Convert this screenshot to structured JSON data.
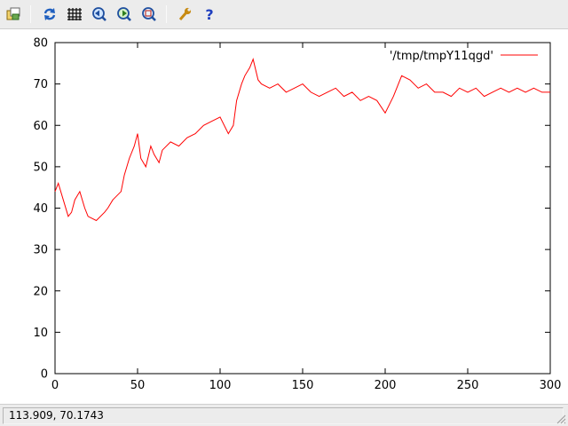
{
  "toolbar": {
    "buttons": [
      {
        "name": "export-icon"
      },
      {
        "name": "replot-icon"
      },
      {
        "name": "grid-icon"
      },
      {
        "name": "zoom-previous-icon"
      },
      {
        "name": "zoom-next-icon"
      },
      {
        "name": "autoscale-icon"
      },
      {
        "name": "options-wrench-icon"
      },
      {
        "name": "help-icon"
      }
    ]
  },
  "status": {
    "coords": "113.909,  70.1743"
  },
  "colors": {
    "series": "#ff0000",
    "axis": "#000000"
  },
  "chart_data": {
    "type": "line",
    "title": "",
    "xlabel": "",
    "ylabel": "",
    "xlim": [
      0,
      300
    ],
    "ylim": [
      0,
      80
    ],
    "xticks": [
      "0",
      "50",
      "100",
      "150",
      "200",
      "250",
      "300"
    ],
    "yticks": [
      "0",
      "10",
      "20",
      "30",
      "40",
      "50",
      "60",
      "70",
      "80"
    ],
    "grid": false,
    "legend": {
      "position": "top-right",
      "entries": [
        "'/tmp/tmpY11qgd'"
      ]
    },
    "series": [
      {
        "name": "'/tmp/tmpY11qgd'",
        "x": [
          0,
          2,
          5,
          8,
          10,
          12,
          15,
          18,
          20,
          25,
          30,
          32,
          35,
          40,
          42,
          45,
          48,
          50,
          52,
          55,
          58,
          60,
          63,
          65,
          70,
          75,
          80,
          85,
          90,
          95,
          100,
          105,
          108,
          110,
          113,
          115,
          118,
          120,
          123,
          125,
          130,
          135,
          140,
          145,
          150,
          155,
          160,
          165,
          170,
          175,
          180,
          185,
          190,
          195,
          200,
          205,
          208,
          210,
          215,
          220,
          225,
          230,
          235,
          240,
          245,
          250,
          255,
          260,
          265,
          270,
          275,
          280,
          285,
          290,
          295,
          300
        ],
        "y": [
          44,
          46,
          42,
          38,
          39,
          42,
          44,
          40,
          38,
          37,
          39,
          40,
          42,
          44,
          48,
          52,
          55,
          58,
          52,
          50,
          55,
          53,
          51,
          54,
          56,
          55,
          57,
          58,
          60,
          61,
          62,
          58,
          60,
          66,
          70,
          72,
          74,
          76,
          71,
          70,
          69,
          70,
          68,
          69,
          70,
          68,
          67,
          68,
          69,
          67,
          68,
          66,
          67,
          66,
          63,
          67,
          70,
          72,
          71,
          69,
          70,
          68,
          68,
          67,
          69,
          68,
          69,
          67,
          68,
          69,
          68,
          69,
          68,
          69,
          68,
          68
        ]
      }
    ]
  }
}
